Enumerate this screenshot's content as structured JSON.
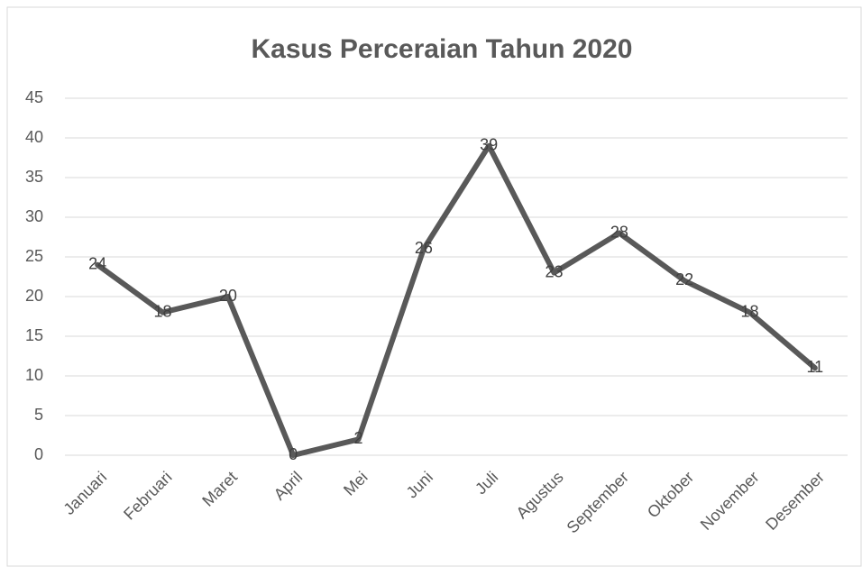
{
  "chart_data": {
    "type": "line",
    "title": "Kasus Perceraian Tahun 2020",
    "categories": [
      "Januari",
      "Februari",
      "Maret",
      "April",
      "Mei",
      "Juni",
      "Juli",
      "Agustus",
      "September",
      "Oktober",
      "November",
      "Desember"
    ],
    "values": [
      24,
      18,
      20,
      0,
      2,
      26,
      39,
      23,
      28,
      22,
      18,
      11
    ],
    "color": "#595959",
    "ylim": [
      0,
      45
    ],
    "yticks": [
      0,
      5,
      10,
      15,
      20,
      25,
      30,
      35,
      40,
      45
    ],
    "grid": true
  }
}
